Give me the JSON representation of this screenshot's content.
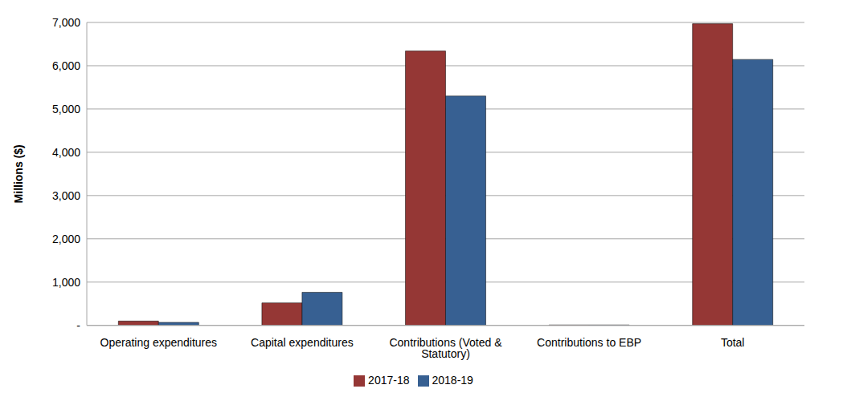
{
  "chart_data": {
    "type": "bar",
    "y_label": "Millions ($)",
    "categories": [
      "Operating expenditures",
      "Capital expenditures",
      "Contributions (Voted & Statutory)",
      "Contributions to EBP",
      "Total"
    ],
    "series": [
      {
        "name": "2017-18",
        "color": "#953735",
        "values": [
          100,
          520,
          6340,
          10,
          6970
        ]
      },
      {
        "name": "2018-19",
        "color": "#376092",
        "values": [
          70,
          765,
          5300,
          10,
          6145
        ]
      }
    ],
    "ylim": [
      0,
      7000
    ],
    "yticks": [
      {
        "value": 0,
        "label": "-"
      },
      {
        "value": 1000,
        "label": "1,000"
      },
      {
        "value": 2000,
        "label": "2,000"
      },
      {
        "value": 3000,
        "label": "3,000"
      },
      {
        "value": 4000,
        "label": "4,000"
      },
      {
        "value": 5000,
        "label": "5,000"
      },
      {
        "value": 6000,
        "label": "6,000"
      },
      {
        "value": 7000,
        "label": "7,000"
      }
    ],
    "grid": true,
    "legend": "bottom"
  }
}
